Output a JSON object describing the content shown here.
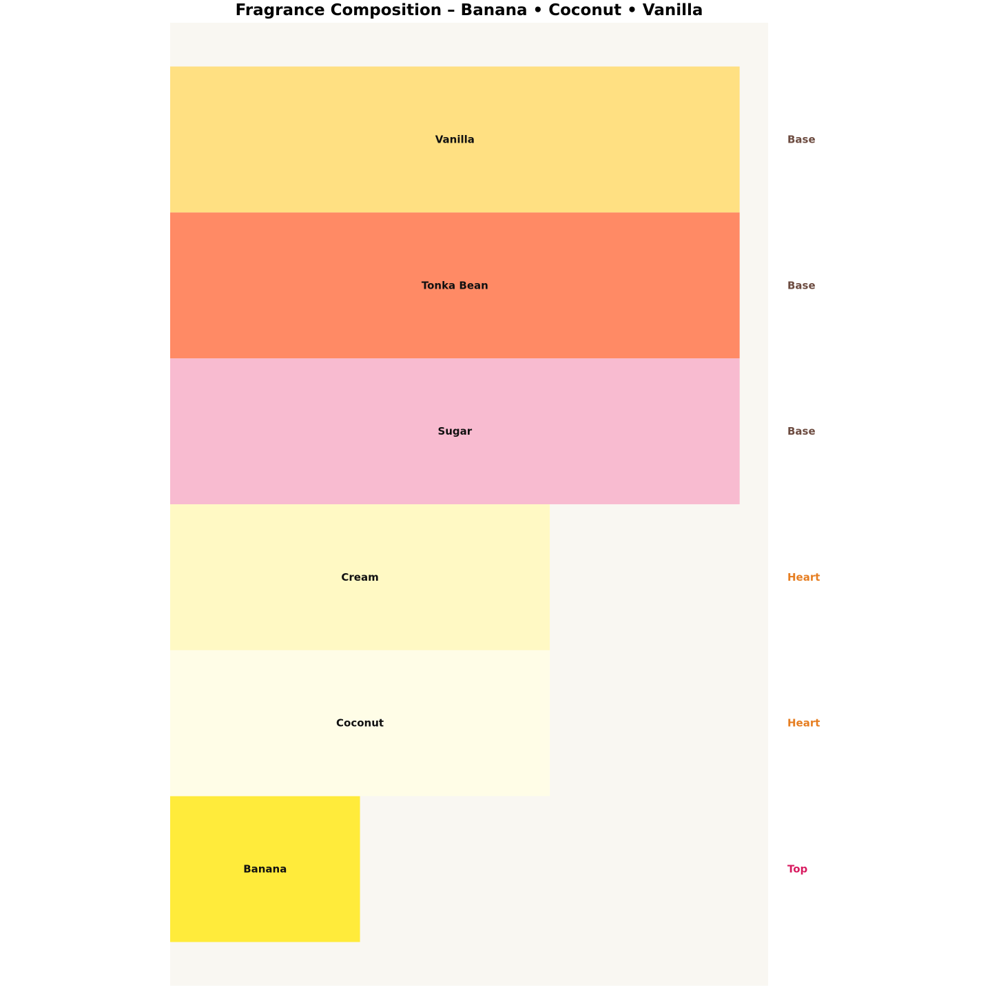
{
  "chart_data": {
    "type": "bar",
    "orientation": "horizontal",
    "title": "Fragrance Composition – Banana • Coconut • Vanilla",
    "xlabel": "",
    "ylabel": "",
    "xlim": [
      0,
      3.15
    ],
    "ylim": [
      -0.8,
      5.8
    ],
    "grid": false,
    "axis_visible": false,
    "background": "#f9f7f2",
    "categories": [
      "Banana",
      "Coconut",
      "Cream",
      "Sugar",
      "Tonka Bean",
      "Vanilla"
    ],
    "values": [
      1,
      2,
      2,
      3,
      3,
      3
    ],
    "tiers": [
      "Top",
      "Heart",
      "Heart",
      "Base",
      "Base",
      "Base"
    ],
    "bar_colors": [
      "#ffeb3b",
      "#fffde7",
      "#fff9c4",
      "#f8bbd0",
      "#ff8a65",
      "#ffe082"
    ],
    "tier_colors": {
      "Top": "#d81b60",
      "Heart": "#e67e22",
      "Base": "#6d4c41"
    }
  }
}
